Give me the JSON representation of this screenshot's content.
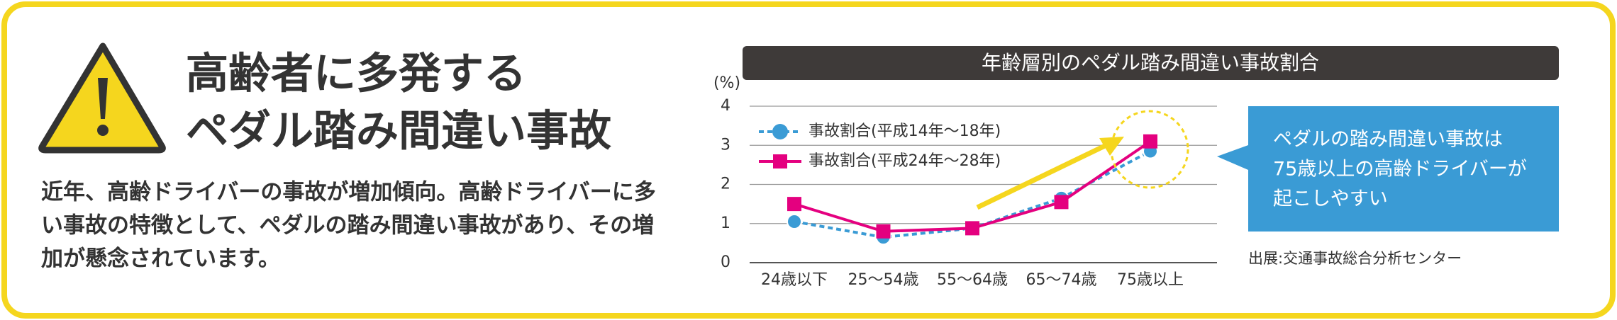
{
  "header": {
    "title_lines": [
      "高齢者に多発する",
      "ペダル踏み間違い事故"
    ],
    "body_lines": [
      "近年、高齢ドライバーの事故が増加傾向。高齢ドライバーに多",
      "い事故の特徴として、ペダルの踏み間違い事故があり、その増",
      "加が懸念されています。"
    ]
  },
  "chart_data": {
    "type": "line",
    "title": "年齢層別のペダル踏み間違い事故割合",
    "y_label": "(%)",
    "categories": [
      "24歳以下",
      "25〜54歳",
      "55〜64歳",
      "65〜74歳",
      "75歳以上"
    ],
    "series": [
      {
        "name": "事故割合(平成14年〜18年)",
        "color": "#3a9bd5",
        "marker": "circle",
        "dashed": true,
        "values": [
          1.05,
          0.65,
          0.88,
          1.65,
          2.85
        ]
      },
      {
        "name": "事故割合(平成24年〜28年)",
        "color": "#e4007f",
        "marker": "square",
        "dashed": false,
        "values": [
          1.5,
          0.8,
          0.88,
          1.55,
          3.1
        ]
      }
    ],
    "ylim": [
      0,
      4
    ],
    "yticks": [
      0,
      1,
      2,
      3,
      4
    ],
    "grid": true
  },
  "callout": {
    "lines": [
      "ペダルの踏み間違い事故は",
      "75歳以上の高齢ドライバーが",
      "起こしやすい"
    ]
  },
  "source": "出展:交通事故総合分析センター"
}
